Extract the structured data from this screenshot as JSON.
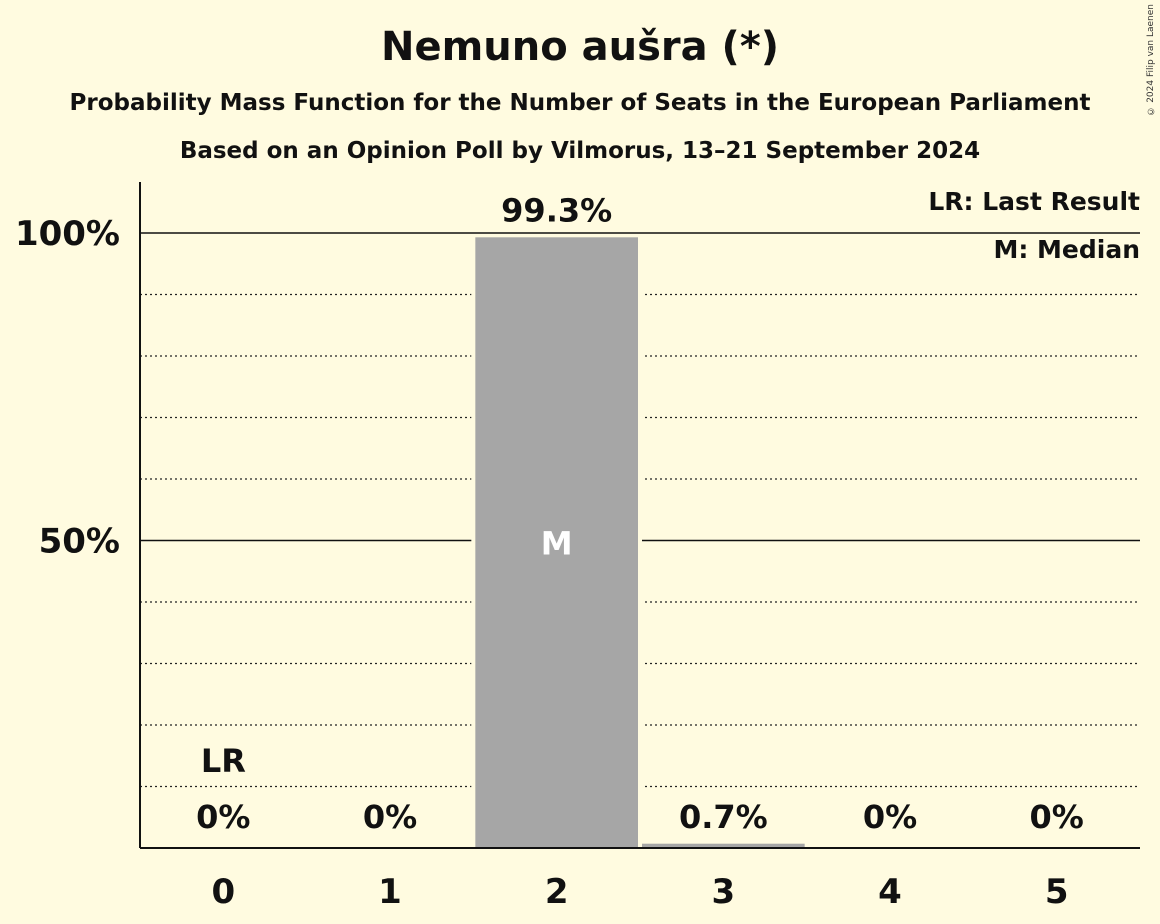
{
  "copyright": "© 2024 Filip van Laenen",
  "chart_data": {
    "type": "bar",
    "title": "Nemuno aušra (*)",
    "subtitle": "Probability Mass Function for the Number of Seats in the European Parliament",
    "subtitle2": "Based on an Opinion Poll by Vilmorus, 13–21 September 2024",
    "categories": [
      "0",
      "1",
      "2",
      "3",
      "4",
      "5"
    ],
    "values": [
      0,
      0,
      99.3,
      0.7,
      0,
      0
    ],
    "value_labels": [
      "0%",
      "0%",
      "99.3%",
      "0.7%",
      "0%",
      "0%"
    ],
    "ylim": [
      0,
      100
    ],
    "yticks": [
      {
        "value": 50,
        "label": "50%"
      },
      {
        "value": 100,
        "label": "100%"
      }
    ],
    "minor_grid_step": 10,
    "bar_color": "#a6a6a6",
    "last_result": {
      "category": "0",
      "label": "LR"
    },
    "median": {
      "category": "2",
      "label": "M"
    },
    "legend": [
      "LR: Last Result",
      "M: Median"
    ],
    "legend_position": "top-right"
  }
}
